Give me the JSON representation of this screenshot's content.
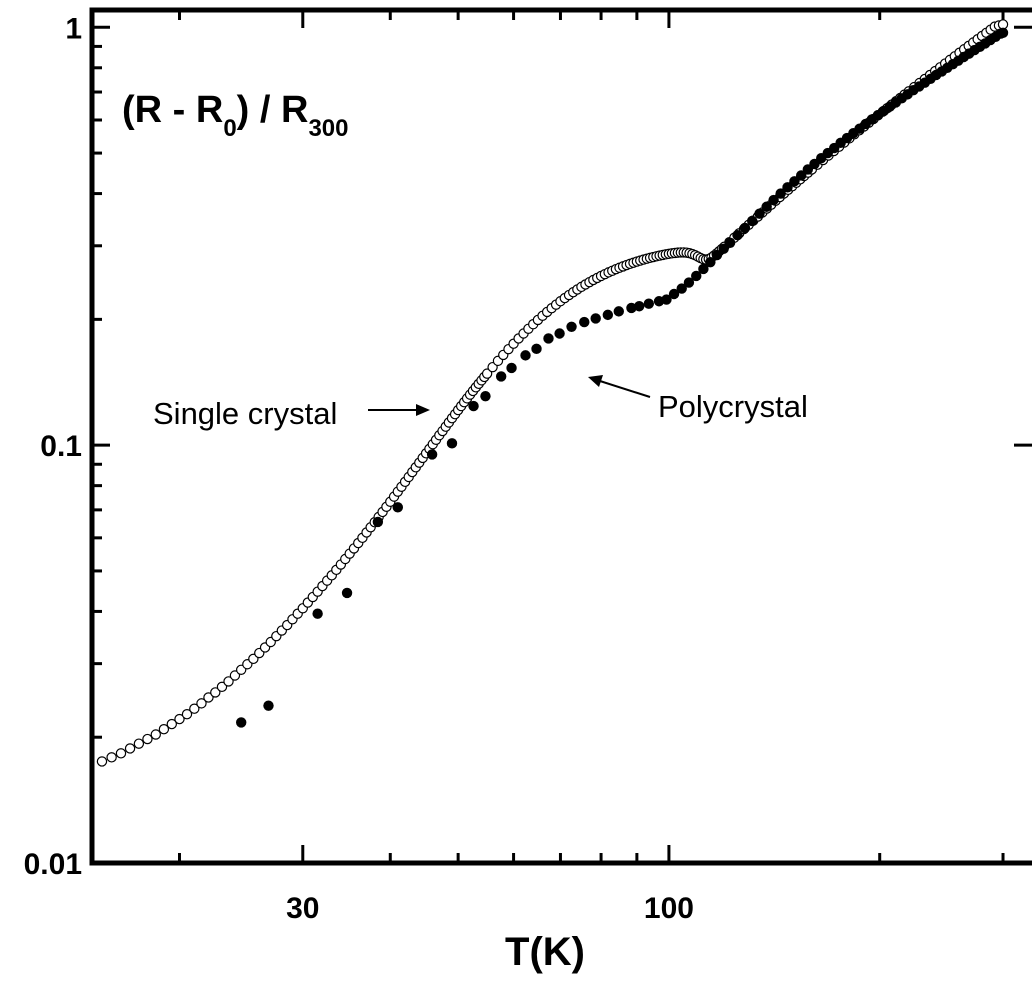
{
  "chart_data": {
    "type": "scatter",
    "xlabel": "T(K)",
    "ylabel": {
      "main": "(R - R",
      "sub0": "0",
      "mid": ") / R",
      "sub300": "300"
    },
    "x_scale": "log",
    "y_scale": "log",
    "xlim": [
      15,
      330
    ],
    "ylim": [
      0.01,
      1.1
    ],
    "x_ticks": [
      {
        "value": 30,
        "label": "30"
      },
      {
        "value": 100,
        "label": "100"
      }
    ],
    "y_ticks": [
      {
        "value": 1,
        "label": "1"
      },
      {
        "value": 0.1,
        "label": "0.1"
      },
      {
        "value": 0.01,
        "label": "0.01"
      }
    ],
    "grid": false,
    "annotations": [
      {
        "text": "Single crystal",
        "target_series": "single"
      },
      {
        "text": "Polycrystal",
        "target_series": "poly"
      }
    ],
    "series": [
      {
        "id": "single",
        "marker": "open-circle",
        "x": [
          15.5,
          16.0,
          16.5,
          17.0,
          17.5,
          18.0,
          18.5,
          19.0,
          19.5,
          20.0,
          20.5,
          21.0,
          21.5,
          22.0,
          22.5,
          23.0,
          23.5,
          24.0,
          24.5,
          25.0,
          25.5,
          26.0,
          26.5,
          27.0,
          27.5,
          28.0,
          28.5,
          29.0,
          29.5,
          30.0,
          30.5,
          31.0,
          31.5,
          32.0,
          32.5,
          33.0,
          33.5,
          34.0,
          34.5,
          35.0,
          35.5,
          36.0,
          36.5,
          37.0,
          37.5,
          38.0,
          38.5,
          39.0,
          39.5,
          40.0,
          40.5,
          41.0,
          41.5,
          42.0,
          42.5,
          43.0,
          43.5,
          44.0,
          44.5,
          45.0,
          45.5,
          46.0,
          46.5,
          47.0,
          47.5,
          48.0,
          48.5,
          49.0,
          49.5,
          50.0,
          50.5,
          51.0,
          51.5,
          52.0,
          52.5,
          53.0,
          53.5,
          54.0,
          54.5,
          55.0,
          56.0,
          57.0,
          58.0,
          59.0,
          60.0,
          61.0,
          62.0,
          63.0,
          64.0,
          65.0,
          66.0,
          67.0,
          68.0,
          69.0,
          70.0,
          71.0,
          72.0,
          73.0,
          74.0,
          75.0,
          76.0,
          77.0,
          78.0,
          79.0,
          80.0,
          81.0,
          82.0,
          83.0,
          84.0,
          85.0,
          86.0,
          87.0,
          88.0,
          89.0,
          90.0,
          91.0,
          92.0,
          93.0,
          94.0,
          95.0,
          96.0,
          97.0,
          98.0,
          99.0,
          100.0,
          101.0,
          102.0,
          103.0,
          104.0,
          105.0,
          106.0,
          107.0,
          108.0,
          109.0,
          110.0,
          111.0,
          112.0,
          113.0,
          114.0,
          115.0,
          116.0,
          117.0,
          118.0,
          119.0,
          120.0,
          122.0,
          124.0,
          126.0,
          128.0,
          130.0,
          132.0,
          134.0,
          136.0,
          138.0,
          140.0,
          142.0,
          144.0,
          146.0,
          148.0,
          150.0,
          152.0,
          154.0,
          156.0,
          158.0,
          160.0,
          163.0,
          166.0,
          169.0,
          172.0,
          175.0,
          178.0,
          181.0,
          184.0,
          187.0,
          190.0,
          193.0,
          196.0,
          199.0,
          202.0,
          205.0,
          208.0,
          211.0,
          214.0,
          217.0,
          220.0,
          224.0,
          228.0,
          232.0,
          236.0,
          240.0,
          244.0,
          248.0,
          252.0,
          256.0,
          260.0,
          264.0,
          268.0,
          272.0,
          276.0,
          280.0,
          284.0,
          288.0,
          292.0,
          296.0,
          300.0
        ],
        "y": [
          0.0175,
          0.0179,
          0.0183,
          0.0188,
          0.0193,
          0.0198,
          0.0203,
          0.0209,
          0.0215,
          0.0221,
          0.0227,
          0.0234,
          0.0241,
          0.0249,
          0.0256,
          0.0264,
          0.0272,
          0.0281,
          0.029,
          0.0299,
          0.0308,
          0.0318,
          0.0328,
          0.0338,
          0.0349,
          0.036,
          0.0371,
          0.0383,
          0.0395,
          0.0407,
          0.042,
          0.0433,
          0.0446,
          0.046,
          0.0474,
          0.0488,
          0.0503,
          0.0518,
          0.0534,
          0.055,
          0.0566,
          0.0583,
          0.06,
          0.0618,
          0.0636,
          0.0654,
          0.0673,
          0.0692,
          0.0712,
          0.0732,
          0.0753,
          0.0774,
          0.0795,
          0.0817,
          0.0839,
          0.0862,
          0.0885,
          0.0908,
          0.0932,
          0.0956,
          0.098,
          0.1005,
          0.103,
          0.1056,
          0.1081,
          0.1107,
          0.1133,
          0.116,
          0.1186,
          0.1213,
          0.124,
          0.1267,
          0.1294,
          0.1321,
          0.1348,
          0.1375,
          0.1402,
          0.1429,
          0.1456,
          0.1483,
          0.1537,
          0.1591,
          0.1644,
          0.1697,
          0.1749,
          0.18,
          0.185,
          0.1899,
          0.1947,
          0.1994,
          0.204,
          0.2084,
          0.2127,
          0.2169,
          0.221,
          0.2249,
          0.2287,
          0.2323,
          0.2358,
          0.2392,
          0.2424,
          0.2455,
          0.2485,
          0.2513,
          0.254,
          0.2566,
          0.2591,
          0.2614,
          0.2637,
          0.2658,
          0.2678,
          0.2698,
          0.2716,
          0.2733,
          0.275,
          0.2765,
          0.278,
          0.2794,
          0.2807,
          0.2819,
          0.2831,
          0.2842,
          0.2852,
          0.2862,
          0.287,
          0.2878,
          0.2884,
          0.2889,
          0.2892,
          0.2892,
          0.2888,
          0.288,
          0.2866,
          0.2848,
          0.2826,
          0.2804,
          0.2786,
          0.278,
          0.279,
          0.2812,
          0.2842,
          0.2876,
          0.2912,
          0.2948,
          0.2985,
          0.306,
          0.3136,
          0.3213,
          0.329,
          0.3368,
          0.3446,
          0.3525,
          0.3604,
          0.3683,
          0.3763,
          0.3843,
          0.3923,
          0.4003,
          0.4083,
          0.4164,
          0.4245,
          0.4326,
          0.4407,
          0.4488,
          0.4569,
          0.469,
          0.4812,
          0.4934,
          0.5056,
          0.5178,
          0.53,
          0.5422,
          0.5545,
          0.5667,
          0.579,
          0.5913,
          0.6036,
          0.6159,
          0.6282,
          0.6405,
          0.6529,
          0.6653,
          0.6777,
          0.6901,
          0.7025,
          0.7191,
          0.7357,
          0.7523,
          0.7689,
          0.7856,
          0.8023,
          0.819,
          0.8357,
          0.8524,
          0.8692,
          0.886,
          0.9028,
          0.9196,
          0.9364,
          0.9533,
          0.9702,
          0.9871,
          1.004,
          1.01,
          1.016
        ]
      },
      {
        "id": "poly",
        "marker": "filled-circle",
        "x": [
          24.5,
          26.8,
          31.5,
          34.7,
          38.4,
          41.0,
          45.9,
          49.0,
          52.6,
          54.7,
          57.6,
          59.6,
          62.4,
          64.7,
          67.3,
          69.8,
          72.6,
          75.7,
          78.6,
          81.8,
          84.8,
          88.4,
          90.7,
          93.6,
          96.8,
          99.2,
          101.7,
          104.3,
          106.8,
          109.4,
          112.0,
          114.6,
          117.1,
          119.7,
          122.3,
          125.3,
          128.4,
          131.5,
          134.7,
          137.9,
          141.1,
          144.4,
          147.7,
          151.1,
          154.5,
          157.9,
          161.4,
          165.0,
          168.6,
          172.2,
          175.9,
          179.6,
          183.4,
          187.2,
          191.0,
          194.9,
          198.8,
          202.8,
          206.8,
          210.9,
          215.0,
          219.2,
          223.4,
          227.7,
          232.0,
          236.4,
          240.8,
          245.3,
          249.8,
          254.4,
          259.0,
          263.7,
          268.4,
          273.2,
          278.0,
          282.9,
          287.8,
          292.8,
          297.8,
          300.0
        ],
        "y": [
          0.0217,
          0.0238,
          0.0395,
          0.0443,
          0.0655,
          0.071,
          0.095,
          0.101,
          0.124,
          0.131,
          0.146,
          0.153,
          0.164,
          0.17,
          0.18,
          0.185,
          0.192,
          0.197,
          0.201,
          0.205,
          0.209,
          0.213,
          0.215,
          0.218,
          0.221,
          0.223,
          0.23,
          0.237,
          0.245,
          0.254,
          0.264,
          0.274,
          0.285,
          0.295,
          0.305,
          0.318,
          0.331,
          0.344,
          0.358,
          0.372,
          0.386,
          0.4,
          0.414,
          0.428,
          0.442,
          0.457,
          0.471,
          0.486,
          0.5,
          0.514,
          0.529,
          0.543,
          0.558,
          0.572,
          0.587,
          0.602,
          0.616,
          0.631,
          0.646,
          0.661,
          0.676,
          0.691,
          0.707,
          0.722,
          0.737,
          0.753,
          0.769,
          0.784,
          0.8,
          0.816,
          0.832,
          0.849,
          0.865,
          0.882,
          0.898,
          0.915,
          0.932,
          0.949,
          0.966,
          0.97
        ]
      }
    ]
  }
}
